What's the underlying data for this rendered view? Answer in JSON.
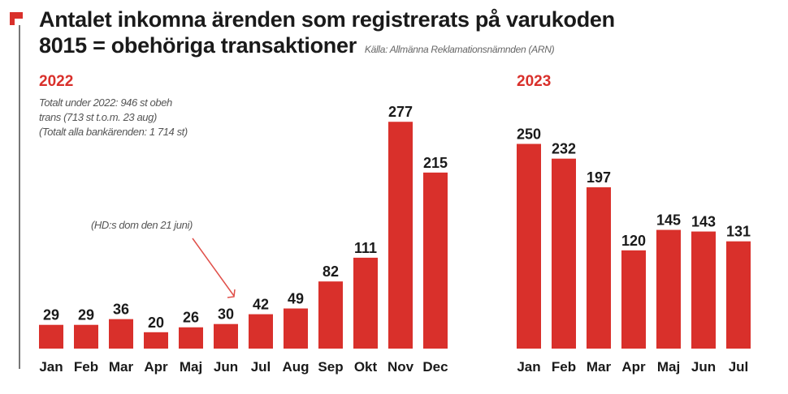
{
  "header": {
    "title_line1": "Antalet inkomna ärenden som registrerats på varukoden",
    "title_line2": "8015 = obehöriga transaktioner",
    "source": "Källa: Allmänna Reklamationsnämnden (ARN)"
  },
  "notes": {
    "line1": "Totalt under 2022: 946 st obeh",
    "line2": "trans (713 st t.o.m. 23 aug)",
    "line3": "(Totalt alla bankärenden: 1 714 st)",
    "annotation": "(HD:s dom den 21 juni)"
  },
  "colors": {
    "bar": "#d9302b",
    "accent": "#d9302b",
    "arrow": "#e0504a"
  },
  "chart_data": [
    {
      "type": "bar",
      "title": "2022",
      "categories": [
        "Jan",
        "Feb",
        "Mar",
        "Apr",
        "Maj",
        "Jun",
        "Jul",
        "Aug",
        "Sep",
        "Okt",
        "Nov",
        "Dec"
      ],
      "values": [
        29,
        29,
        36,
        20,
        26,
        30,
        42,
        49,
        82,
        111,
        277,
        215
      ],
      "annotation": {
        "text": "(HD:s dom den 21 juni)",
        "points_to": "Jun"
      }
    },
    {
      "type": "bar",
      "title": "2023",
      "categories": [
        "Jan",
        "Feb",
        "Mar",
        "Apr",
        "Maj",
        "Jun",
        "Jul"
      ],
      "values": [
        250,
        232,
        197,
        120,
        145,
        143,
        131
      ]
    }
  ]
}
